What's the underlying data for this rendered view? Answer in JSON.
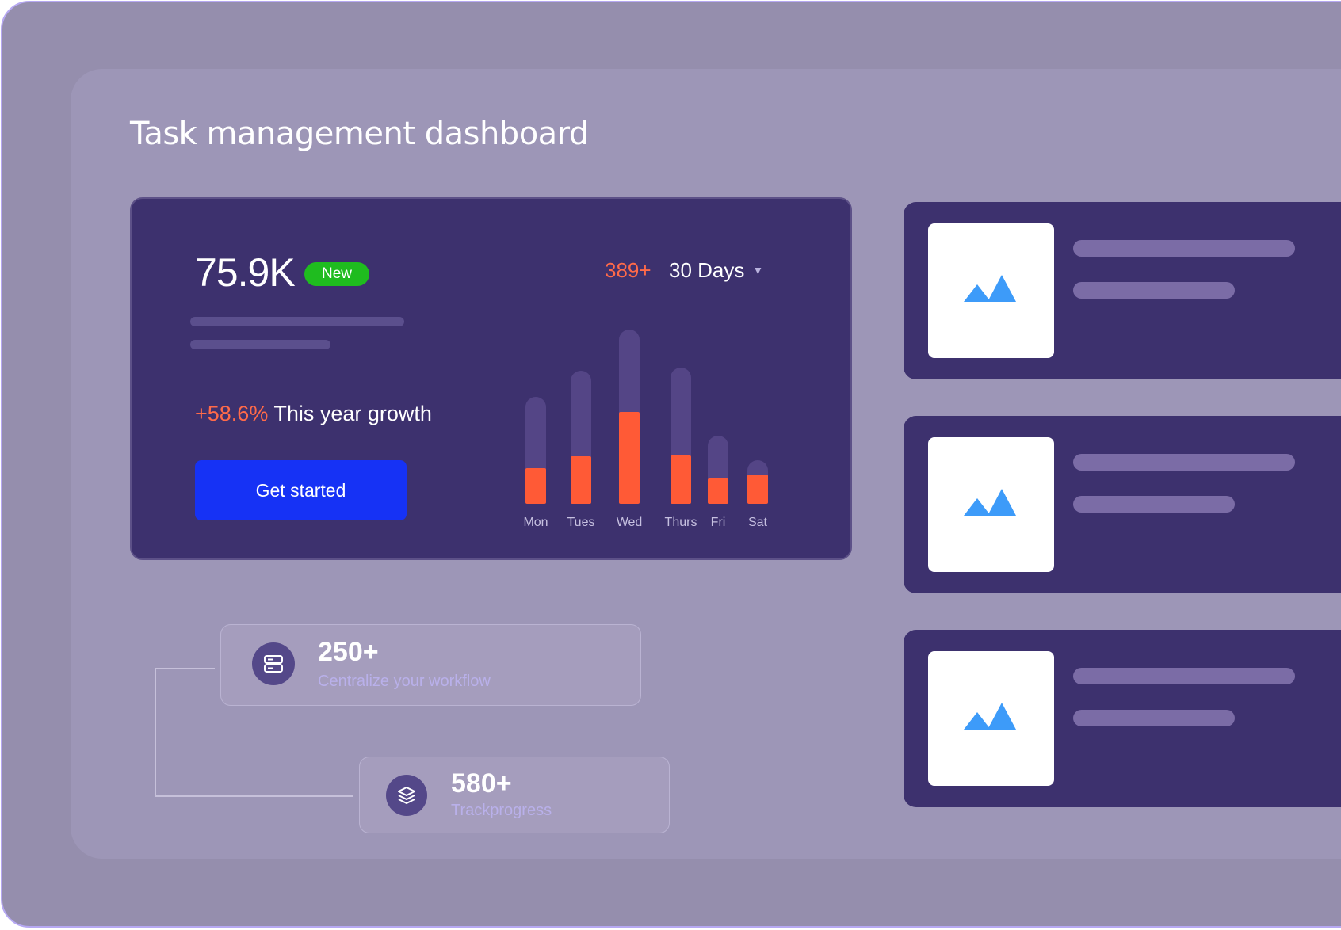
{
  "page_title": "Task management dashboard",
  "summary": {
    "value": "75.9K",
    "badge": "New",
    "growth_percent": "+58.6%",
    "growth_label": "This year growth",
    "cta_label": "Get started",
    "stat_count": "389+",
    "period": "30 Days"
  },
  "chart_data": {
    "type": "bar",
    "categories": [
      "Mon",
      "Tues",
      "Wed",
      "Thurs",
      "Fri",
      "Sat"
    ],
    "series": [
      {
        "values": [
          45,
          60,
          116,
          61,
          32,
          37
        ]
      },
      {
        "values": [
          135,
          168,
          220,
          172,
          86,
          55
        ]
      }
    ],
    "ylim": [
      0,
      220
    ],
    "colors": {
      "value": "#ff5a36",
      "total": "#544586"
    }
  },
  "features": [
    {
      "count": "250+",
      "label": "Centralize your workflow",
      "icon": "server-icon"
    },
    {
      "count": "580+",
      "label": "Trackprogress",
      "icon": "layers-icon"
    }
  ],
  "list_cards": [
    {
      "icon": "image-placeholder-icon"
    },
    {
      "icon": "image-placeholder-icon"
    },
    {
      "icon": "image-placeholder-icon"
    }
  ],
  "colors": {
    "accent": "#1632f5",
    "highlight": "#ff6a49",
    "badge": "#1fbc1f",
    "card": "#3d316e"
  }
}
